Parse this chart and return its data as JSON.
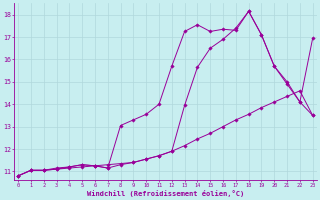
{
  "xlabel": "Windchill (Refroidissement éolien,°C)",
  "background_color": "#c8eef0",
  "line_color": "#990099",
  "xlim": [
    -0.3,
    23.3
  ],
  "ylim": [
    10.6,
    18.5
  ],
  "xticks": [
    0,
    1,
    2,
    3,
    4,
    5,
    6,
    7,
    8,
    9,
    10,
    11,
    12,
    13,
    14,
    15,
    16,
    17,
    18,
    19,
    20,
    21,
    22,
    23
  ],
  "yticks": [
    11,
    12,
    13,
    14,
    15,
    16,
    17,
    18
  ],
  "grid_color": "#b0d8dc",
  "line1_x": [
    0,
    1,
    2,
    3,
    4,
    5,
    6,
    7,
    8,
    9,
    10,
    11,
    12,
    13,
    14,
    15,
    16,
    17,
    18,
    19,
    20,
    21,
    22,
    23
  ],
  "line1_y": [
    10.8,
    11.05,
    11.05,
    11.1,
    11.15,
    11.2,
    11.25,
    11.3,
    11.35,
    11.4,
    11.55,
    11.7,
    11.9,
    12.15,
    12.45,
    12.7,
    13.0,
    13.3,
    13.55,
    13.85,
    14.1,
    14.35,
    14.6,
    13.5
  ],
  "line2_x": [
    0,
    1,
    2,
    3,
    4,
    5,
    6,
    7,
    8,
    9,
    10,
    11,
    12,
    13,
    14,
    15,
    16,
    17,
    18,
    19,
    20,
    21,
    22,
    23
  ],
  "line2_y": [
    10.8,
    11.05,
    11.05,
    11.1,
    11.2,
    11.3,
    11.25,
    11.15,
    11.3,
    11.4,
    11.55,
    11.7,
    11.9,
    13.95,
    15.65,
    16.5,
    16.9,
    17.4,
    18.15,
    17.1,
    15.7,
    15.0,
    14.1,
    13.5
  ],
  "line3_x": [
    0,
    1,
    2,
    3,
    4,
    5,
    6,
    7,
    8,
    9,
    10,
    11,
    12,
    13,
    14,
    15,
    16,
    17,
    18,
    19,
    20,
    21,
    22,
    23
  ],
  "line3_y": [
    10.8,
    11.05,
    11.05,
    11.15,
    11.2,
    11.3,
    11.25,
    11.15,
    13.05,
    13.3,
    13.55,
    14.0,
    15.7,
    17.25,
    17.55,
    17.25,
    17.35,
    17.3,
    18.15,
    17.1,
    15.7,
    14.9,
    14.1,
    16.95
  ]
}
